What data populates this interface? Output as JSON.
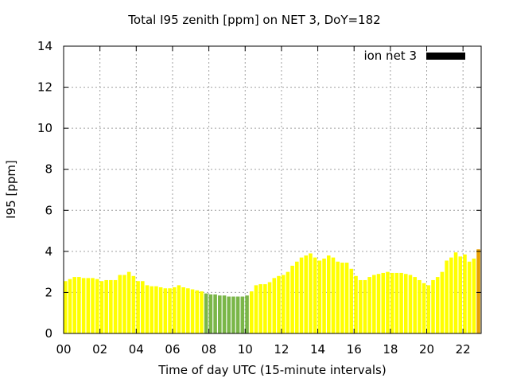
{
  "chart_data": {
    "type": "bar",
    "title": "Total I95 zenith [ppm] on NET 3, DoY=182",
    "xlabel": "Time of day UTC (15-minute intervals)",
    "ylabel": "I95 [ppm]",
    "xlim": [
      0,
      23
    ],
    "ylim": [
      0,
      14
    ],
    "xticks": [
      0,
      2,
      4,
      6,
      8,
      10,
      12,
      14,
      16,
      18,
      20,
      22
    ],
    "xtick_labels": [
      "00",
      "02",
      "04",
      "06",
      "08",
      "10",
      "12",
      "14",
      "16",
      "18",
      "20",
      "22"
    ],
    "yticks": [
      0,
      2,
      4,
      6,
      8,
      10,
      12,
      14
    ],
    "ytick_labels": [
      "0",
      "2",
      "4",
      "6",
      "8",
      "10",
      "12",
      "14"
    ],
    "grid": true,
    "legend": {
      "label": "ion net 3",
      "color": "#000000",
      "placement": "top-right"
    },
    "interval_hours": 0.25,
    "series": [
      {
        "name": "ion net 3",
        "values": [
          2.55,
          2.65,
          2.75,
          2.75,
          2.7,
          2.7,
          2.7,
          2.65,
          2.55,
          2.6,
          2.6,
          2.6,
          2.85,
          2.85,
          3.0,
          2.8,
          2.55,
          2.55,
          2.35,
          2.3,
          2.3,
          2.25,
          2.2,
          2.2,
          2.25,
          2.35,
          2.25,
          2.2,
          2.15,
          2.1,
          2.05,
          1.95,
          1.9,
          1.9,
          1.85,
          1.85,
          1.8,
          1.8,
          1.8,
          1.8,
          1.85,
          2.05,
          2.35,
          2.4,
          2.4,
          2.5,
          2.7,
          2.8,
          2.85,
          3.0,
          3.3,
          3.5,
          3.7,
          3.8,
          3.9,
          3.7,
          3.55,
          3.65,
          3.8,
          3.7,
          3.5,
          3.45,
          3.45,
          3.15,
          2.8,
          2.6,
          2.6,
          2.75,
          2.85,
          2.9,
          2.95,
          3.0,
          2.95,
          2.95,
          2.95,
          2.9,
          2.85,
          2.75,
          2.6,
          2.45,
          2.35,
          2.6,
          2.75,
          3.0,
          3.55,
          3.7,
          3.95,
          3.75,
          3.85,
          3.5,
          3.65,
          4.1
        ]
      }
    ],
    "colors": {
      "high": "#ffff00",
      "low": "#7ab648",
      "peak": "#e8a000",
      "threshold": 2.0
    }
  }
}
